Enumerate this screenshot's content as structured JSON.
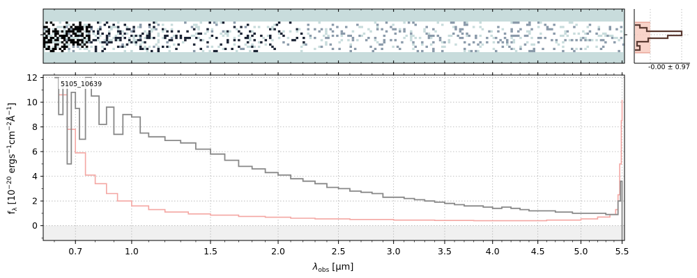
{
  "chart_data": [
    {
      "type": "heatmap",
      "panel": "2d-spectrum",
      "colormap": [
        "#c8dcdc",
        "#ffffff",
        "#8a9aaa",
        "#1a2233",
        "#000000"
      ]
    },
    {
      "type": "line",
      "panel": "cross-dispersion-profile",
      "annotation": "-0.00 ± 0.97",
      "colors": {
        "profile": "#5a3a32",
        "fill": "#f7c9bd",
        "fill_edge": "#e08878"
      }
    },
    {
      "type": "line",
      "panel": "1d-spectrum",
      "object_id": "5105_10639",
      "xlabel_main": "λ",
      "xlabel_sub": "obs",
      "xlabel_unit": "[μm]",
      "ylabel": "f_λ [10^-20 ergs^-1cm^-2Å^-1]",
      "ylabel_parts": {
        "f": "f",
        "f_sub": "λ",
        "base": "[10",
        "exp1": "−20",
        "mid1": " ergs",
        "exp2": "−1",
        "mid2": "cm",
        "exp3": "−2",
        "mid3": "Å",
        "exp4": "−1",
        "end": "]"
      },
      "x_ticks": [
        "0.7",
        "1.0",
        "1.5",
        "2.0",
        "2.5",
        "3.0",
        "3.5",
        "4.0",
        "4.5",
        "5.0",
        "5.5"
      ],
      "x_tick_values": [
        0.7,
        1.0,
        1.5,
        2.0,
        2.5,
        3.0,
        3.5,
        4.0,
        4.5,
        5.0,
        5.5
      ],
      "y_ticks": [
        "0",
        "2",
        "4",
        "6",
        "8",
        "10",
        "12"
      ],
      "y_tick_values": [
        0,
        2,
        4,
        6,
        8,
        10,
        12
      ],
      "ylim": [
        -1.2,
        12.2
      ],
      "xlim": [
        0.55,
        5.53
      ],
      "grid": true,
      "colors": {
        "flux": "#888888",
        "error": "#f4a6a2",
        "zero_band": "#f0f0f0"
      },
      "series": [
        {
          "role": "flux",
          "x": [
            0.6,
            0.62,
            0.64,
            0.66,
            0.68,
            0.7,
            0.72,
            0.75,
            0.78,
            0.82,
            0.86,
            0.9,
            0.95,
            1.0,
            1.05,
            1.1,
            1.2,
            1.3,
            1.4,
            1.5,
            1.6,
            1.7,
            1.8,
            1.9,
            2.0,
            2.1,
            2.2,
            2.3,
            2.4,
            2.5,
            2.6,
            2.7,
            2.8,
            2.9,
            3.0,
            3.1,
            3.2,
            3.3,
            3.4,
            3.5,
            3.6,
            3.7,
            3.8,
            3.9,
            4.0,
            4.1,
            4.2,
            4.3,
            4.4,
            4.5,
            4.6,
            4.7,
            4.8,
            4.9,
            5.0,
            5.1,
            5.2,
            5.3,
            5.4,
            5.45,
            5.48,
            5.5
          ],
          "y": [
            12.0,
            9.0,
            11.5,
            5.0,
            10.8,
            9.5,
            7.0,
            12.0,
            10.5,
            8.2,
            9.6,
            7.4,
            9.0,
            8.8,
            7.5,
            7.2,
            6.9,
            6.7,
            6.2,
            5.8,
            5.3,
            4.8,
            4.6,
            4.3,
            4.1,
            3.8,
            3.6,
            3.4,
            3.1,
            3.0,
            2.8,
            2.7,
            2.6,
            2.3,
            2.3,
            2.2,
            2.1,
            2.0,
            1.9,
            1.8,
            1.7,
            1.6,
            1.6,
            1.5,
            1.4,
            1.5,
            1.4,
            1.3,
            1.2,
            1.2,
            1.2,
            1.1,
            1.1,
            1.0,
            1.0,
            1.0,
            1.0,
            0.9,
            0.9,
            2.0,
            3.6,
            -1.2
          ]
        },
        {
          "role": "error",
          "x": [
            0.62,
            0.66,
            0.7,
            0.75,
            0.8,
            0.86,
            0.92,
            1.0,
            1.1,
            1.2,
            1.35,
            1.5,
            1.7,
            1.9,
            2.1,
            2.3,
            2.6,
            3.0,
            3.4,
            3.8,
            4.2,
            4.6,
            5.0,
            5.2,
            5.35,
            5.42,
            5.45,
            5.47,
            5.49,
            5.5
          ],
          "y": [
            10.6,
            7.8,
            5.9,
            4.1,
            3.4,
            2.6,
            2.0,
            1.6,
            1.3,
            1.1,
            0.95,
            0.85,
            0.75,
            0.68,
            0.6,
            0.55,
            0.5,
            0.45,
            0.42,
            0.4,
            0.4,
            0.45,
            0.55,
            0.7,
            0.9,
            1.3,
            2.5,
            5.0,
            8.5,
            10.2
          ]
        }
      ]
    }
  ]
}
